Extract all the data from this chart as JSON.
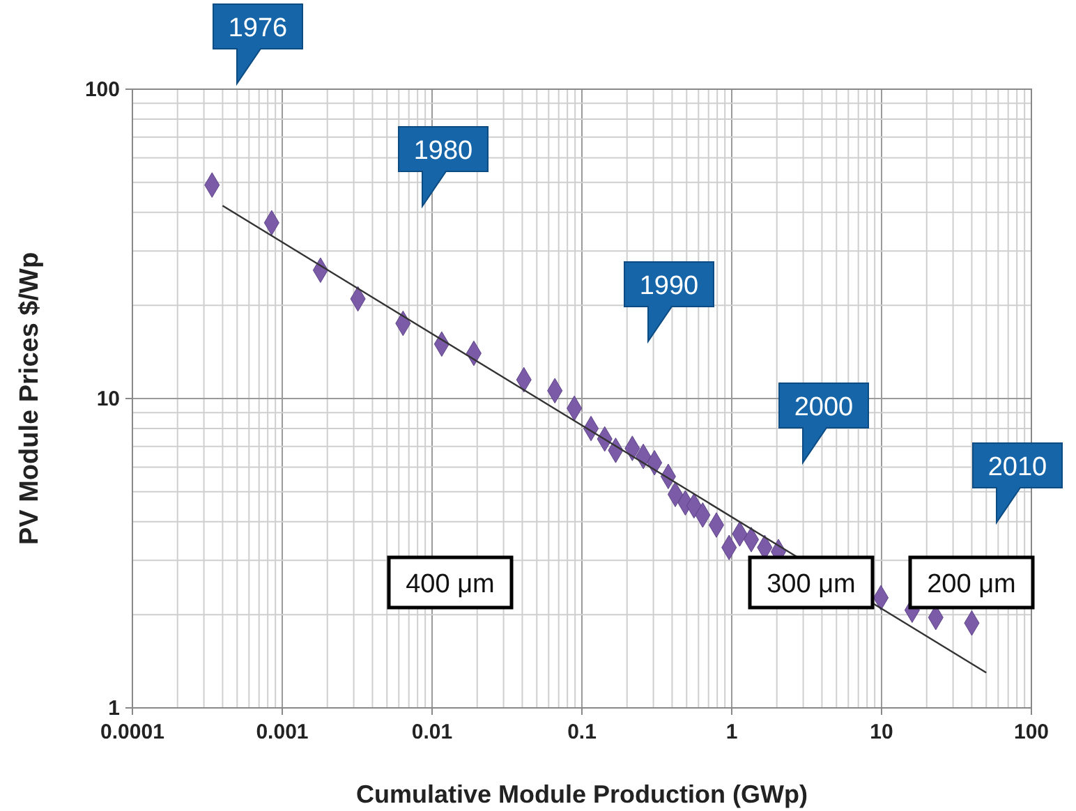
{
  "chart_data": {
    "type": "scatter",
    "xlabel": "Cumulative Module Production (GWp)",
    "ylabel": "PV Module Prices $/Wp",
    "log": "xy",
    "grid": true,
    "xlim": [
      0.0001,
      100
    ],
    "xticks": [
      0.0001,
      0.001,
      0.01,
      0.1,
      1,
      10,
      100
    ],
    "ylim": [
      1,
      100
    ],
    "yticks": [
      1,
      10,
      100
    ],
    "series": [
      {
        "color": "#7b5ba8",
        "marker": "diamond",
        "x": [
          0.00034,
          0.00085,
          0.0018,
          0.0032,
          0.0064,
          0.0116,
          0.019,
          0.041,
          0.066,
          0.089,
          0.115,
          0.142,
          0.168,
          0.217,
          0.257,
          0.305,
          0.377,
          0.42,
          0.49,
          0.56,
          0.64,
          0.79,
          0.96,
          1.13,
          1.35,
          1.66,
          2.05,
          9.9,
          16,
          23,
          40
        ],
        "values": [
          49,
          37,
          26,
          21,
          17.5,
          15,
          14,
          11.5,
          10.6,
          9.3,
          8,
          7.4,
          6.8,
          6.9,
          6.5,
          6.2,
          5.6,
          4.9,
          4.6,
          4.5,
          4.2,
          3.9,
          3.3,
          3.65,
          3.5,
          3.3,
          3.2,
          2.27,
          2.07,
          1.96,
          1.88
        ]
      },
      {
        "type": "line",
        "color": "#333333",
        "x": [
          0.0004,
          50
        ],
        "values": [
          42,
          1.3
        ]
      }
    ],
    "annotations": [
      "1976",
      "1980",
      "1990",
      "2000",
      "2010",
      "400 μm",
      "300 μm",
      "200 μm"
    ]
  }
}
